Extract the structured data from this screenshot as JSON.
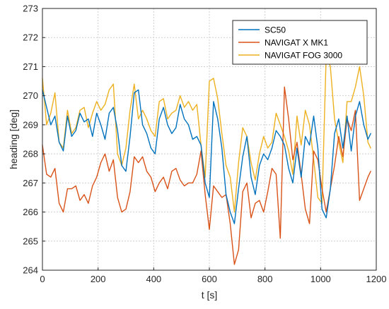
{
  "chart_data": {
    "type": "line",
    "title": "",
    "xlabel": "t [s]",
    "ylabel": "heading [deg]",
    "xlim": [
      0,
      1200
    ],
    "ylim": [
      264,
      273
    ],
    "xticks": [
      "0",
      "200",
      "400",
      "600",
      "800",
      "1000",
      "1200"
    ],
    "yticks": [
      "264",
      "265",
      "266",
      "267",
      "268",
      "269",
      "270",
      "271",
      "272",
      "273"
    ],
    "grid": true,
    "legend_position": "top-right",
    "series": [
      {
        "name": "SC50",
        "color": "#0072BD",
        "x": [
          0,
          15,
          30,
          45,
          60,
          75,
          90,
          105,
          120,
          135,
          150,
          165,
          180,
          195,
          210,
          225,
          240,
          255,
          270,
          285,
          300,
          315,
          330,
          345,
          360,
          375,
          390,
          405,
          420,
          435,
          450,
          465,
          480,
          495,
          510,
          525,
          540,
          555,
          570,
          585,
          600,
          615,
          630,
          645,
          660,
          675,
          690,
          705,
          720,
          735,
          750,
          765,
          780,
          795,
          810,
          825,
          840,
          855,
          870,
          885,
          900,
          915,
          930,
          945,
          960,
          975,
          990,
          1005,
          1020,
          1035,
          1050,
          1065,
          1080,
          1095,
          1110,
          1125,
          1140,
          1155,
          1170,
          1180
        ],
        "y": [
          270.2,
          269.6,
          269.0,
          269.3,
          268.4,
          268.1,
          269.3,
          268.6,
          268.8,
          269.4,
          269.1,
          269.2,
          268.6,
          269.4,
          269.0,
          268.5,
          269.4,
          269.6,
          268.8,
          267.6,
          267.4,
          268.6,
          270.1,
          270.2,
          269.0,
          268.7,
          268.2,
          268.0,
          269.2,
          269.6,
          269.0,
          268.7,
          268.9,
          269.7,
          269.2,
          269.0,
          268.5,
          268.6,
          268.3,
          267.0,
          266.5,
          269.8,
          269.2,
          268.2,
          266.6,
          266.0,
          265.6,
          266.8,
          267.9,
          268.6,
          267.2,
          266.6,
          267.6,
          268.0,
          267.8,
          268.2,
          268.8,
          268.6,
          268.3,
          267.5,
          267.0,
          268.2,
          267.2,
          268.6,
          268.3,
          269.3,
          268.2,
          266.1,
          265.8,
          266.8,
          268.7,
          269.2,
          268.2,
          269.3,
          268.1,
          269.3,
          269.8,
          269.0,
          268.5,
          268.7
        ]
      },
      {
        "name": "NAVIGAT X MK1",
        "color": "#D95319",
        "x": [
          0,
          15,
          30,
          45,
          60,
          75,
          90,
          105,
          120,
          135,
          150,
          165,
          180,
          195,
          210,
          225,
          240,
          255,
          270,
          285,
          300,
          315,
          330,
          345,
          360,
          375,
          390,
          405,
          420,
          435,
          450,
          465,
          480,
          495,
          510,
          525,
          540,
          555,
          570,
          585,
          600,
          615,
          630,
          645,
          660,
          675,
          690,
          705,
          720,
          735,
          750,
          765,
          780,
          795,
          810,
          825,
          840,
          855,
          870,
          885,
          900,
          915,
          930,
          945,
          960,
          975,
          990,
          1005,
          1020,
          1035,
          1050,
          1065,
          1080,
          1095,
          1110,
          1125,
          1140,
          1155,
          1170,
          1180
        ],
        "y": [
          268.3,
          267.3,
          267.2,
          267.5,
          266.3,
          266.0,
          266.8,
          266.8,
          266.9,
          266.4,
          266.6,
          266.3,
          266.9,
          267.2,
          267.7,
          268.0,
          267.4,
          267.8,
          266.5,
          266.0,
          266.1,
          266.7,
          267.9,
          267.7,
          267.9,
          267.4,
          267.2,
          266.7,
          267.0,
          267.2,
          266.8,
          267.4,
          267.5,
          267.1,
          266.9,
          267.0,
          267.0,
          267.3,
          268.1,
          266.6,
          265.4,
          266.9,
          266.7,
          266.5,
          266.6,
          265.6,
          264.2,
          264.7,
          266.7,
          267.0,
          265.8,
          266.3,
          266.4,
          266.0,
          266.7,
          267.5,
          267.3,
          265.1,
          270.3,
          269.2,
          267.8,
          268.4,
          267.3,
          266.1,
          265.6,
          268.1,
          267.8,
          266.8,
          266.0,
          266.8,
          267.6,
          268.6,
          267.9,
          269.2,
          268.8,
          269.5,
          266.4,
          266.8,
          267.2,
          267.4
        ]
      },
      {
        "name": "NAVIGAT FOG 3000",
        "color": "#EDB120",
        "x": [
          0,
          15,
          30,
          45,
          60,
          75,
          90,
          105,
          120,
          135,
          150,
          165,
          180,
          195,
          210,
          225,
          240,
          255,
          270,
          285,
          300,
          315,
          330,
          345,
          360,
          375,
          390,
          405,
          420,
          435,
          450,
          465,
          480,
          495,
          510,
          525,
          540,
          555,
          570,
          585,
          600,
          615,
          630,
          645,
          660,
          675,
          690,
          705,
          720,
          735,
          750,
          765,
          780,
          795,
          810,
          825,
          840,
          855,
          870,
          885,
          900,
          915,
          930,
          945,
          960,
          975,
          990,
          1005,
          1020,
          1035,
          1050,
          1065,
          1080,
          1095,
          1110,
          1125,
          1140,
          1155,
          1170,
          1180
        ],
        "y": [
          270.6,
          269.0,
          269.4,
          270.1,
          268.4,
          268.2,
          269.5,
          268.7,
          268.9,
          269.5,
          269.6,
          268.9,
          269.4,
          269.8,
          269.5,
          269.7,
          270.2,
          270.4,
          268.0,
          267.6,
          268.2,
          269.5,
          270.4,
          269.2,
          269.5,
          269.2,
          268.8,
          268.6,
          269.8,
          269.9,
          269.2,
          269.4,
          269.5,
          270.0,
          269.6,
          269.8,
          269.5,
          269.7,
          268.3,
          267.2,
          270.5,
          270.6,
          269.9,
          268.7,
          267.6,
          267.2,
          266.0,
          267.7,
          268.9,
          268.6,
          267.7,
          267.1,
          268.0,
          268.6,
          268.2,
          268.4,
          269.4,
          269.0,
          268.6,
          268.1,
          267.3,
          269.3,
          268.3,
          269.5,
          269.0,
          267.8,
          266.5,
          266.3,
          271.4,
          271.0,
          269.2,
          268.4,
          267.7,
          269.8,
          269.8,
          270.3,
          271.0,
          270.0,
          268.4,
          268.2
        ]
      }
    ]
  }
}
